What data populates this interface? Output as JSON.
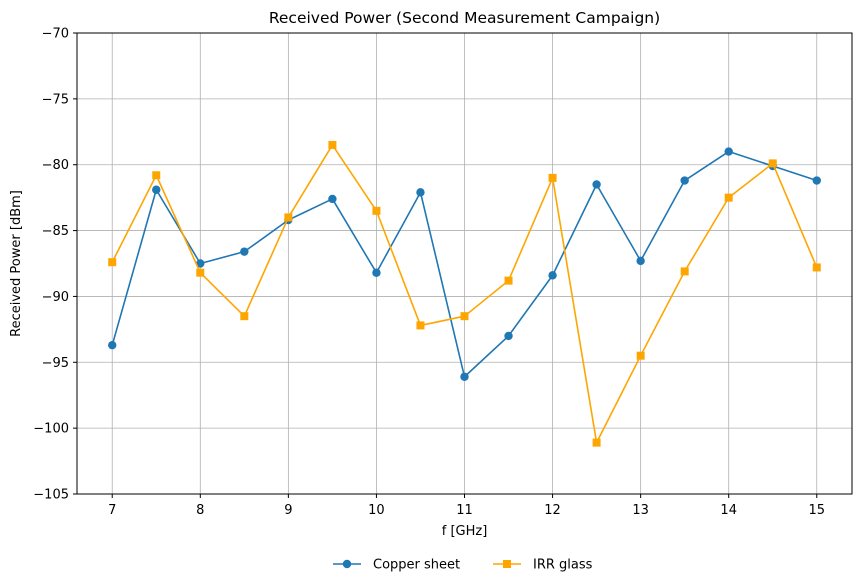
{
  "chart_data": {
    "type": "line",
    "title": "Received Power (Second Measurement Campaign)",
    "xlabel": "f [GHz]",
    "ylabel": "Received Power [dBm]",
    "xlim": [
      6.6,
      15.4
    ],
    "ylim": [
      -105,
      -70
    ],
    "x_ticks": [
      7,
      8,
      9,
      10,
      11,
      12,
      13,
      14,
      15
    ],
    "y_ticks": [
      -105,
      -100,
      -95,
      -90,
      -85,
      -80,
      -75,
      -70
    ],
    "x_tick_labels": [
      "7",
      "8",
      "9",
      "10",
      "11",
      "12",
      "13",
      "14",
      "15"
    ],
    "y_tick_labels": [
      "−105",
      "−100",
      "−95",
      "−90",
      "−85",
      "−80",
      "−75",
      "−70"
    ],
    "grid": true,
    "legend_position": "bottom-center",
    "x": [
      7,
      7.5,
      8,
      8.5,
      9,
      9.5,
      10,
      10.5,
      11,
      11.5,
      12,
      12.5,
      13,
      13.5,
      14,
      14.5,
      15
    ],
    "series": [
      {
        "name": "Copper sheet",
        "color": "#1f77b4",
        "marker": "circle",
        "values": [
          -93.7,
          -81.9,
          -87.5,
          -86.6,
          -84.2,
          -82.6,
          -88.2,
          -82.1,
          -96.1,
          -93.0,
          -88.4,
          -81.5,
          -87.3,
          -81.2,
          -79.0,
          -80.1,
          -81.2
        ]
      },
      {
        "name": "IRR glass",
        "color": "#ffa500",
        "marker": "square",
        "values": [
          -87.4,
          -80.8,
          -88.2,
          -91.5,
          -84.0,
          -78.5,
          -83.5,
          -92.2,
          -91.5,
          -88.8,
          -81.0,
          -101.1,
          -94.5,
          -88.1,
          -82.5,
          -79.9,
          -87.8
        ]
      }
    ]
  }
}
